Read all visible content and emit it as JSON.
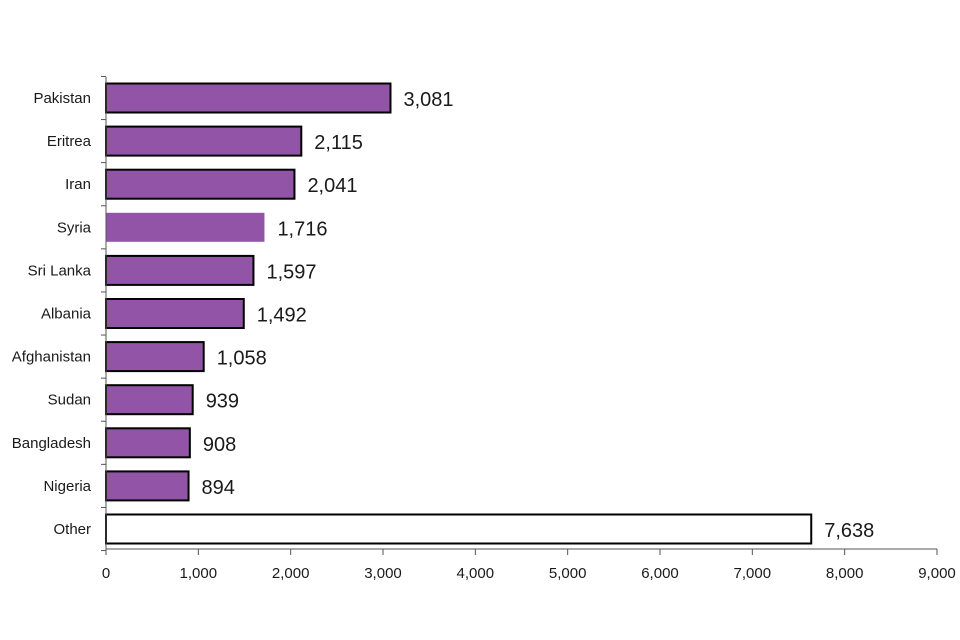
{
  "chart_data": {
    "type": "bar",
    "orientation": "horizontal",
    "categories": [
      "Pakistan",
      "Eritrea",
      "Iran",
      "Syria",
      "Sri Lanka",
      "Albania",
      "Afghanistan",
      "Sudan",
      "Bangladesh",
      "Nigeria",
      "Other"
    ],
    "values": [
      3081,
      2115,
      2041,
      1716,
      1597,
      1492,
      1058,
      939,
      908,
      894,
      7638
    ],
    "value_labels": [
      "3,081",
      "2,115",
      "2,041",
      "1,716",
      "1,597",
      "1,492",
      "1,058",
      "939",
      "908",
      "894",
      "7,638"
    ],
    "title": "",
    "xlabel": "",
    "ylabel": "",
    "xlim": [
      0,
      9000
    ],
    "x_ticks": [
      0,
      1000,
      2000,
      3000,
      4000,
      5000,
      6000,
      7000,
      8000,
      9000
    ],
    "x_tick_labels": [
      "0",
      "1,000",
      "2,000",
      "3,000",
      "4,000",
      "5,000",
      "6,000",
      "7,000",
      "8,000",
      "9,000"
    ],
    "grid": false,
    "legend": "none",
    "colors": {
      "bar_fill": "#9254a6",
      "highlight_fill": "#9254a6",
      "other_fill": "#ffffff",
      "bar_stroke": "#000000",
      "axis": "#555555"
    },
    "outlined": [
      true,
      true,
      true,
      false,
      true,
      true,
      true,
      true,
      true,
      true,
      true
    ]
  }
}
